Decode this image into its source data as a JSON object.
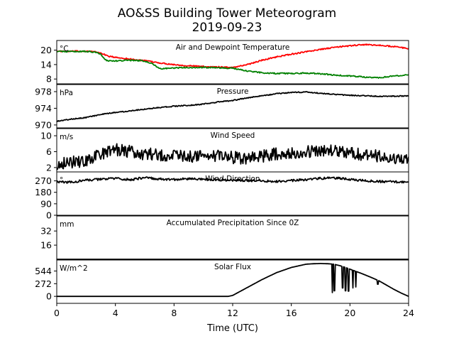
{
  "title": "AO&SS Building Tower Meteorogram",
  "subtitle": "2019-09-23",
  "chart_data": [
    {
      "type": "line",
      "title": "Air and Dewpoint Temperature",
      "ylabel": "°C",
      "xlabel": "Time (UTC)",
      "xlim": [
        0,
        24
      ],
      "ylim": [
        6,
        24
      ],
      "yticks": [
        "8",
        "14",
        "20"
      ],
      "series": [
        {
          "color": "#ff0000",
          "x": [
            0,
            1,
            2,
            2.5,
            3,
            3.5,
            4,
            5,
            6,
            7,
            8,
            9,
            10,
            11,
            12,
            13,
            14,
            15,
            16,
            17,
            18,
            19,
            20,
            21,
            22,
            23,
            24
          ],
          "y": [
            19.5,
            19.5,
            19.6,
            19.4,
            18.8,
            17.5,
            17,
            16.3,
            15.6,
            14.7,
            14,
            13.5,
            13.2,
            13,
            12.8,
            14,
            15.8,
            17.2,
            18.3,
            19.3,
            20.3,
            21.2,
            21.8,
            22.3,
            22,
            21.5,
            20.6
          ]
        },
        {
          "color": "#008000",
          "x": [
            0,
            1,
            2,
            2.5,
            3,
            3.3,
            3.5,
            4,
            5,
            6,
            6.5,
            7,
            8,
            9,
            10,
            11,
            12,
            13,
            14,
            15,
            16,
            17,
            18,
            19,
            20,
            21,
            22,
            23,
            24
          ],
          "y": [
            19.5,
            19.4,
            19.5,
            19.2,
            18.5,
            16,
            15.6,
            15.5,
            15.8,
            15.5,
            14.5,
            12.3,
            12.6,
            12.8,
            12.8,
            12.7,
            12.5,
            11.3,
            10.6,
            10.3,
            10.3,
            10.5,
            10.2,
            9.6,
            9.3,
            8.8,
            8.6,
            9.2,
            9.9
          ]
        }
      ]
    },
    {
      "type": "line",
      "title": "Pressure",
      "ylabel": "hPa",
      "xlim": [
        0,
        24
      ],
      "ylim": [
        969.3,
        979.7
      ],
      "yticks": [
        "970",
        "974",
        "978"
      ],
      "series": [
        {
          "color": "#000000",
          "x": [
            0,
            1,
            2,
            3,
            4,
            5,
            6,
            7,
            8,
            9,
            10,
            11,
            12,
            13,
            14,
            15,
            16,
            17,
            18,
            19,
            20,
            21,
            22,
            23,
            24
          ],
          "y": [
            970.9,
            971.4,
            971.8,
            972.5,
            973,
            973.4,
            973.8,
            974.2,
            974.5,
            974.7,
            975,
            975.5,
            975.9,
            976.5,
            977,
            977.5,
            977.8,
            977.9,
            977.6,
            977.3,
            977.1,
            977,
            976.9,
            976.9,
            977
          ]
        }
      ]
    },
    {
      "type": "line",
      "title": "Wind Speed",
      "ylabel": "m/s",
      "xlim": [
        0,
        24
      ],
      "ylim": [
        0.9,
        11.8
      ],
      "yticks": [
        "2",
        "6",
        "10"
      ],
      "series": [
        {
          "color": "#000000",
          "x": [
            0,
            1,
            2,
            2.5,
            3,
            3.5,
            4,
            5,
            6,
            7,
            8,
            9,
            10,
            11,
            12,
            13,
            14,
            15,
            16,
            17,
            18,
            19,
            20,
            21,
            22,
            23,
            24
          ],
          "y": [
            3,
            3.5,
            3.4,
            4.6,
            5.2,
            6.2,
            6.6,
            6,
            5.4,
            5.2,
            5,
            5,
            4.8,
            5,
            4.5,
            4.2,
            4.8,
            5.5,
            5.8,
            6,
            6.2,
            6.3,
            5.7,
            5.3,
            4.8,
            4.5,
            4.3
          ]
        }
      ]
    },
    {
      "type": "line",
      "title": "Wind Direction",
      "ylabel": "°",
      "xlim": [
        0,
        24
      ],
      "ylim": [
        0,
        340
      ],
      "yticks": [
        "0",
        "90",
        "180",
        "270"
      ],
      "series": [
        {
          "color": "#000000",
          "x": [
            0,
            1,
            2,
            3,
            4,
            5,
            6,
            7,
            8,
            9,
            10,
            11,
            12,
            13,
            14,
            15,
            16,
            17,
            18,
            19,
            20,
            21,
            22,
            23,
            24
          ],
          "y": [
            262,
            258,
            275,
            282,
            290,
            278,
            295,
            284,
            280,
            286,
            283,
            278,
            276,
            272,
            270,
            266,
            272,
            280,
            290,
            292,
            282,
            272,
            265,
            262,
            260
          ]
        }
      ]
    },
    {
      "type": "line",
      "title": "Accumulated Precipitation Since 0Z",
      "ylabel": "mm",
      "xlim": [
        0,
        24
      ],
      "ylim": [
        0,
        49
      ],
      "yticks": [
        "16",
        "32"
      ],
      "series": [
        {
          "color": "#000000",
          "x": [
            0,
            24
          ],
          "y": [
            0,
            0
          ]
        }
      ]
    },
    {
      "type": "line",
      "title": "Solar Flux",
      "ylabel": "W/m^2",
      "xlabel": "Time (UTC)",
      "xlim": [
        0,
        24
      ],
      "ylim": [
        -150,
        780
      ],
      "yticks": [
        "0",
        "272",
        "544"
      ],
      "xticks": [
        "0",
        "4",
        "8",
        "12",
        "16",
        "20",
        "24"
      ],
      "series": [
        {
          "color": "#000000",
          "x": [
            0,
            11.7,
            12,
            13,
            14,
            15,
            16,
            17,
            17.5,
            18,
            18.5,
            18.9,
            19.3,
            19.7,
            20.2,
            20.8,
            21.5,
            22,
            22.5,
            23,
            23.5,
            24
          ],
          "y": [
            0,
            0,
            20,
            190,
            360,
            510,
            620,
            690,
            700,
            705,
            700,
            690,
            660,
            620,
            560,
            490,
            400,
            330,
            240,
            150,
            70,
            0
          ]
        }
      ]
    }
  ]
}
